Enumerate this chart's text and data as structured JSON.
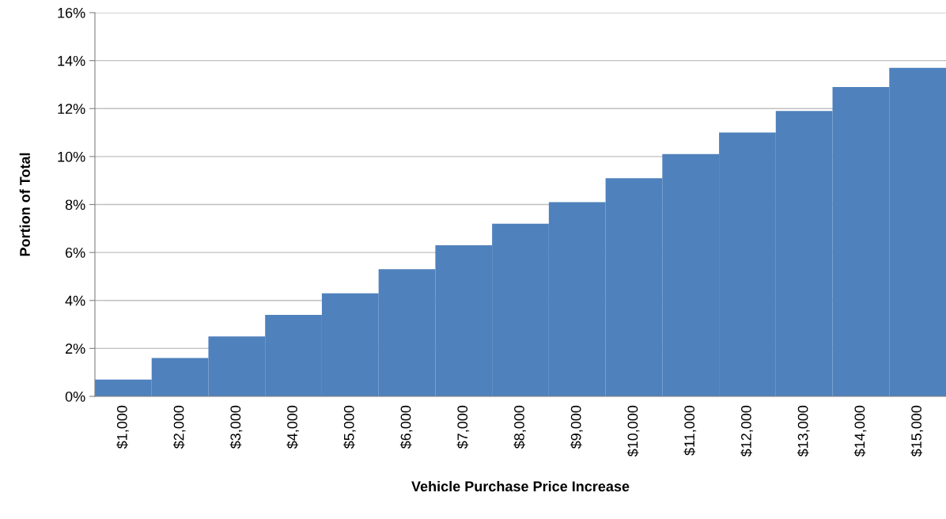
{
  "chart_data": {
    "type": "bar",
    "xlabel": "Vehicle Purchase Price Increase",
    "ylabel": "Portion of Total",
    "categories": [
      "$1,000",
      "$2,000",
      "$3,000",
      "$4,000",
      "$5,000",
      "$6,000",
      "$7,000",
      "$8,000",
      "$9,000",
      "$10,000",
      "$11,000",
      "$12,000",
      "$13,000",
      "$14,000",
      "$15,000"
    ],
    "values": [
      0.7,
      1.6,
      2.5,
      3.4,
      4.3,
      5.3,
      6.3,
      7.2,
      8.1,
      9.1,
      10.1,
      11.0,
      11.9,
      12.9,
      13.7
    ],
    "color": "#4f81bd",
    "ylim": [
      0,
      16
    ],
    "yticks": [
      {
        "value": 0,
        "label": "0%"
      },
      {
        "value": 2,
        "label": "2%"
      },
      {
        "value": 4,
        "label": "4%"
      },
      {
        "value": 6,
        "label": "6%"
      },
      {
        "value": 8,
        "label": "8%"
      },
      {
        "value": 10,
        "label": "10%"
      },
      {
        "value": 12,
        "label": "12%"
      },
      {
        "value": 14,
        "label": "14%"
      },
      {
        "value": 16,
        "label": "16%"
      }
    ],
    "grid": "y",
    "legend": false
  }
}
